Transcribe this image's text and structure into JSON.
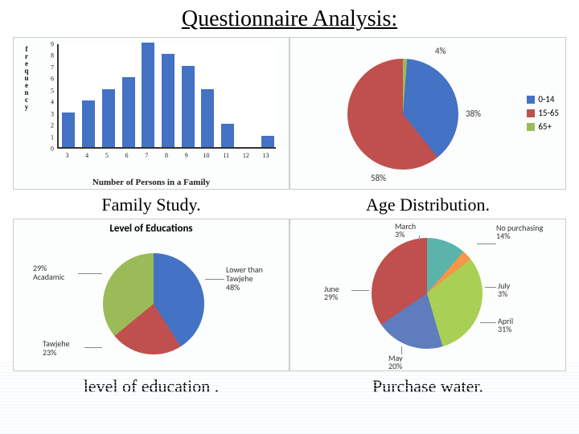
{
  "page": {
    "title": "Questionnaire Analysis:",
    "background_lines_color": "#eaf2f8"
  },
  "family_study": {
    "caption": "Family Study.",
    "type": "bar",
    "y_label": "frequency",
    "x_label": "Number of Persons in a Family",
    "categories": [
      "3",
      "4",
      "5",
      "6",
      "7",
      "8",
      "9",
      "10",
      "11",
      "12",
      "13"
    ],
    "values": [
      3,
      4,
      5,
      6,
      9,
      8,
      7,
      5,
      2,
      0,
      1
    ],
    "ylim": [
      0,
      9
    ],
    "bar_color": "#4472c4",
    "axis_color": "#333333",
    "label_fontsize": 9
  },
  "age_distribution": {
    "caption": "Age Distribution.",
    "type": "pie",
    "slices": [
      {
        "label": "0-14",
        "pct": 38,
        "color": "#4472c4"
      },
      {
        "label": "15-65",
        "pct": 58,
        "color": "#c0504d"
      },
      {
        "label": "65+",
        "pct": 4,
        "color": "#9bbb59"
      }
    ],
    "legend_items": [
      {
        "label": "0-14",
        "color": "#4472c4"
      },
      {
        "label": "15-65",
        "color": "#c0504d"
      },
      {
        "label": "65+",
        "color": "#9bbb59"
      }
    ],
    "pct_label_fontsize": 11
  },
  "education": {
    "caption": "level of education .",
    "title": "Level of Educations",
    "type": "pie",
    "slices": [
      {
        "label": "Lower than Tawjehe",
        "display": "Lower than\nTawjehe\n48%",
        "pct": 48,
        "color": "#4472c4"
      },
      {
        "label": "Tawjehe",
        "display": "Tawjehe\n23%",
        "pct": 23,
        "color": "#c0504d"
      },
      {
        "label": "Acadamic",
        "display": "29%\nAcadamic",
        "pct": 29,
        "color": "#9bbb59"
      }
    ]
  },
  "purchase_water": {
    "caption": "Purchase water.",
    "type": "pie",
    "slices": [
      {
        "label": "March",
        "display": "March\n3%",
        "pct": 3,
        "color": "#558ed5"
      },
      {
        "label": "No purchasing",
        "display": "No purchasing\n14%",
        "pct": 14,
        "color": "#5ab4ac"
      },
      {
        "label": "July",
        "display": "July\n3%",
        "pct": 3,
        "color": "#f79646"
      },
      {
        "label": "April",
        "display": "April\n31%",
        "pct": 31,
        "color": "#a9cf54"
      },
      {
        "label": "May",
        "display": "May\n20%",
        "pct": 20,
        "color": "#5f7cbf"
      },
      {
        "label": "June",
        "display": "June\n29%",
        "pct": 29,
        "color": "#c0504d"
      }
    ]
  }
}
